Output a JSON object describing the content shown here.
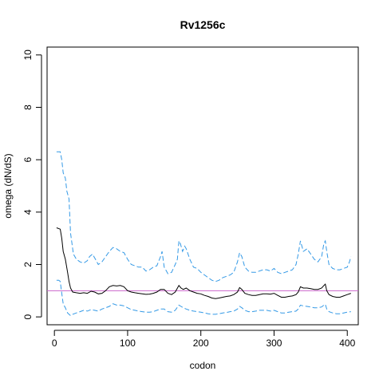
{
  "chart_data": {
    "type": "line",
    "title": "Rv1256c",
    "xlabel": "codon",
    "ylabel": "omega (dN/dS)",
    "xlim": [
      -10,
      415
    ],
    "ylim": [
      -0.3,
      10.3
    ],
    "x_ticks": [
      0,
      100,
      200,
      300,
      400
    ],
    "y_ticks": [
      0,
      2,
      4,
      6,
      8,
      10
    ],
    "grid": false,
    "reference_line": {
      "y": 1,
      "color": "#cc66cc"
    },
    "series": [
      {
        "role": "upper bound",
        "color": "#3399e6",
        "style": "dashed",
        "points": [
          [
            3,
            6.3
          ],
          [
            8,
            6.3
          ],
          [
            10,
            6.0
          ],
          [
            12,
            5.5
          ],
          [
            15,
            5.3
          ],
          [
            17,
            4.8
          ],
          [
            20,
            4.5
          ],
          [
            22,
            3.2
          ],
          [
            24,
            2.8
          ],
          [
            26,
            2.4
          ],
          [
            30,
            2.2
          ],
          [
            35,
            2.1
          ],
          [
            40,
            2.05
          ],
          [
            45,
            2.15
          ],
          [
            48,
            2.3
          ],
          [
            52,
            2.4
          ],
          [
            56,
            2.2
          ],
          [
            60,
            2.0
          ],
          [
            65,
            2.1
          ],
          [
            70,
            2.3
          ],
          [
            75,
            2.5
          ],
          [
            80,
            2.65
          ],
          [
            85,
            2.6
          ],
          [
            90,
            2.5
          ],
          [
            95,
            2.45
          ],
          [
            100,
            2.2
          ],
          [
            105,
            2.0
          ],
          [
            110,
            1.95
          ],
          [
            115,
            1.9
          ],
          [
            120,
            1.9
          ],
          [
            125,
            1.75
          ],
          [
            130,
            1.8
          ],
          [
            135,
            1.9
          ],
          [
            140,
            1.95
          ],
          [
            145,
            2.3
          ],
          [
            147,
            2.5
          ],
          [
            150,
            1.9
          ],
          [
            155,
            1.65
          ],
          [
            160,
            1.7
          ],
          [
            165,
            2.0
          ],
          [
            168,
            2.2
          ],
          [
            170,
            2.9
          ],
          [
            172,
            2.8
          ],
          [
            175,
            2.5
          ],
          [
            178,
            2.7
          ],
          [
            180,
            2.6
          ],
          [
            185,
            2.2
          ],
          [
            190,
            1.9
          ],
          [
            195,
            1.85
          ],
          [
            200,
            1.7
          ],
          [
            205,
            1.6
          ],
          [
            210,
            1.5
          ],
          [
            215,
            1.4
          ],
          [
            220,
            1.35
          ],
          [
            225,
            1.4
          ],
          [
            230,
            1.5
          ],
          [
            235,
            1.55
          ],
          [
            240,
            1.6
          ],
          [
            245,
            1.7
          ],
          [
            250,
            2.1
          ],
          [
            253,
            2.45
          ],
          [
            256,
            2.3
          ],
          [
            260,
            1.9
          ],
          [
            265,
            1.75
          ],
          [
            270,
            1.7
          ],
          [
            275,
            1.7
          ],
          [
            280,
            1.75
          ],
          [
            285,
            1.8
          ],
          [
            290,
            1.8
          ],
          [
            295,
            1.75
          ],
          [
            300,
            1.85
          ],
          [
            305,
            1.7
          ],
          [
            310,
            1.65
          ],
          [
            315,
            1.7
          ],
          [
            320,
            1.75
          ],
          [
            325,
            1.8
          ],
          [
            330,
            2.0
          ],
          [
            333,
            2.4
          ],
          [
            336,
            2.9
          ],
          [
            340,
            2.5
          ],
          [
            345,
            2.6
          ],
          [
            350,
            2.4
          ],
          [
            355,
            2.2
          ],
          [
            360,
            2.1
          ],
          [
            365,
            2.3
          ],
          [
            368,
            2.8
          ],
          [
            370,
            2.9
          ],
          [
            372,
            2.5
          ],
          [
            375,
            2.0
          ],
          [
            380,
            1.85
          ],
          [
            385,
            1.8
          ],
          [
            390,
            1.8
          ],
          [
            395,
            1.85
          ],
          [
            400,
            1.9
          ],
          [
            403,
            2.1
          ],
          [
            405,
            2.3
          ]
        ]
      },
      {
        "role": "estimate",
        "color": "#000000",
        "style": "solid",
        "points": [
          [
            3,
            3.4
          ],
          [
            8,
            3.35
          ],
          [
            10,
            3.0
          ],
          [
            12,
            2.5
          ],
          [
            15,
            2.2
          ],
          [
            18,
            1.7
          ],
          [
            20,
            1.35
          ],
          [
            22,
            1.1
          ],
          [
            25,
            0.95
          ],
          [
            30,
            0.92
          ],
          [
            35,
            0.9
          ],
          [
            40,
            0.92
          ],
          [
            45,
            0.9
          ],
          [
            50,
            0.98
          ],
          [
            55,
            0.95
          ],
          [
            60,
            0.88
          ],
          [
            65,
            0.9
          ],
          [
            70,
            1.0
          ],
          [
            75,
            1.15
          ],
          [
            80,
            1.2
          ],
          [
            85,
            1.18
          ],
          [
            90,
            1.2
          ],
          [
            95,
            1.15
          ],
          [
            100,
            1.0
          ],
          [
            105,
            0.95
          ],
          [
            110,
            0.92
          ],
          [
            115,
            0.9
          ],
          [
            120,
            0.88
          ],
          [
            125,
            0.86
          ],
          [
            130,
            0.87
          ],
          [
            135,
            0.9
          ],
          [
            140,
            0.95
          ],
          [
            145,
            1.05
          ],
          [
            150,
            1.05
          ],
          [
            155,
            0.9
          ],
          [
            160,
            0.85
          ],
          [
            165,
            0.95
          ],
          [
            170,
            1.2
          ],
          [
            173,
            1.1
          ],
          [
            176,
            1.05
          ],
          [
            180,
            1.1
          ],
          [
            185,
            1.0
          ],
          [
            190,
            0.95
          ],
          [
            195,
            0.9
          ],
          [
            200,
            0.88
          ],
          [
            205,
            0.82
          ],
          [
            210,
            0.78
          ],
          [
            215,
            0.72
          ],
          [
            220,
            0.7
          ],
          [
            225,
            0.72
          ],
          [
            230,
            0.75
          ],
          [
            235,
            0.78
          ],
          [
            240,
            0.8
          ],
          [
            245,
            0.85
          ],
          [
            250,
            0.95
          ],
          [
            253,
            1.12
          ],
          [
            256,
            1.05
          ],
          [
            260,
            0.9
          ],
          [
            265,
            0.85
          ],
          [
            270,
            0.82
          ],
          [
            275,
            0.82
          ],
          [
            280,
            0.85
          ],
          [
            285,
            0.88
          ],
          [
            290,
            0.88
          ],
          [
            295,
            0.87
          ],
          [
            300,
            0.9
          ],
          [
            305,
            0.82
          ],
          [
            310,
            0.75
          ],
          [
            315,
            0.75
          ],
          [
            320,
            0.78
          ],
          [
            325,
            0.8
          ],
          [
            330,
            0.85
          ],
          [
            333,
            0.95
          ],
          [
            336,
            1.15
          ],
          [
            340,
            1.1
          ],
          [
            345,
            1.1
          ],
          [
            350,
            1.08
          ],
          [
            355,
            1.05
          ],
          [
            360,
            1.05
          ],
          [
            365,
            1.1
          ],
          [
            368,
            1.2
          ],
          [
            370,
            1.25
          ],
          [
            372,
            1.0
          ],
          [
            375,
            0.85
          ],
          [
            380,
            0.78
          ],
          [
            385,
            0.75
          ],
          [
            390,
            0.75
          ],
          [
            395,
            0.8
          ],
          [
            400,
            0.85
          ],
          [
            405,
            0.9
          ]
        ]
      },
      {
        "role": "lower bound",
        "color": "#3399e6",
        "style": "dashed",
        "points": [
          [
            3,
            1.4
          ],
          [
            6,
            1.4
          ],
          [
            8,
            1.35
          ],
          [
            10,
            0.9
          ],
          [
            12,
            0.5
          ],
          [
            15,
            0.35
          ],
          [
            18,
            0.15
          ],
          [
            20,
            0.1
          ],
          [
            22,
            0.05
          ],
          [
            25,
            0.1
          ],
          [
            30,
            0.15
          ],
          [
            35,
            0.2
          ],
          [
            40,
            0.25
          ],
          [
            45,
            0.22
          ],
          [
            50,
            0.28
          ],
          [
            55,
            0.25
          ],
          [
            60,
            0.22
          ],
          [
            65,
            0.3
          ],
          [
            70,
            0.35
          ],
          [
            75,
            0.4
          ],
          [
            80,
            0.5
          ],
          [
            85,
            0.45
          ],
          [
            90,
            0.45
          ],
          [
            95,
            0.42
          ],
          [
            100,
            0.35
          ],
          [
            105,
            0.28
          ],
          [
            110,
            0.25
          ],
          [
            115,
            0.22
          ],
          [
            120,
            0.2
          ],
          [
            125,
            0.18
          ],
          [
            130,
            0.18
          ],
          [
            135,
            0.2
          ],
          [
            140,
            0.25
          ],
          [
            145,
            0.3
          ],
          [
            150,
            0.3
          ],
          [
            155,
            0.2
          ],
          [
            160,
            0.18
          ],
          [
            165,
            0.25
          ],
          [
            170,
            0.45
          ],
          [
            173,
            0.4
          ],
          [
            176,
            0.35
          ],
          [
            180,
            0.3
          ],
          [
            185,
            0.25
          ],
          [
            190,
            0.22
          ],
          [
            195,
            0.2
          ],
          [
            200,
            0.18
          ],
          [
            205,
            0.15
          ],
          [
            210,
            0.12
          ],
          [
            215,
            0.1
          ],
          [
            220,
            0.1
          ],
          [
            225,
            0.12
          ],
          [
            230,
            0.15
          ],
          [
            235,
            0.17
          ],
          [
            240,
            0.2
          ],
          [
            245,
            0.22
          ],
          [
            250,
            0.3
          ],
          [
            253,
            0.4
          ],
          [
            256,
            0.35
          ],
          [
            260,
            0.25
          ],
          [
            265,
            0.2
          ],
          [
            270,
            0.2
          ],
          [
            275,
            0.22
          ],
          [
            280,
            0.25
          ],
          [
            285,
            0.25
          ],
          [
            290,
            0.25
          ],
          [
            295,
            0.22
          ],
          [
            300,
            0.25
          ],
          [
            305,
            0.2
          ],
          [
            310,
            0.15
          ],
          [
            315,
            0.15
          ],
          [
            320,
            0.18
          ],
          [
            325,
            0.2
          ],
          [
            330,
            0.22
          ],
          [
            333,
            0.3
          ],
          [
            336,
            0.45
          ],
          [
            340,
            0.42
          ],
          [
            345,
            0.4
          ],
          [
            350,
            0.38
          ],
          [
            355,
            0.35
          ],
          [
            360,
            0.35
          ],
          [
            365,
            0.38
          ],
          [
            368,
            0.45
          ],
          [
            370,
            0.48
          ],
          [
            372,
            0.3
          ],
          [
            375,
            0.2
          ],
          [
            380,
            0.15
          ],
          [
            385,
            0.12
          ],
          [
            390,
            0.12
          ],
          [
            395,
            0.15
          ],
          [
            400,
            0.18
          ],
          [
            405,
            0.2
          ]
        ]
      }
    ]
  }
}
